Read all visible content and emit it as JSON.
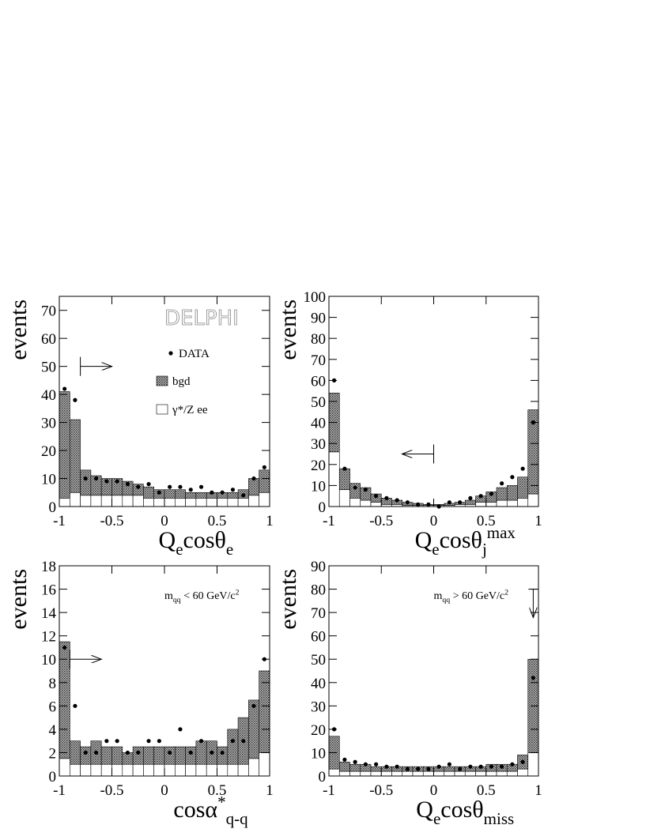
{
  "chart_data": [
    {
      "type": "histogram",
      "ylabel": "events",
      "xlabel": [
        {
          "text": "Q"
        },
        {
          "text": "e",
          "shift": "sub"
        },
        {
          "text": "cosθ"
        },
        {
          "text": "e",
          "shift": "sub"
        }
      ],
      "annotation": [
        {
          "text": "DELPHI",
          "style": "outline"
        }
      ],
      "legend": true,
      "bins": [
        -1,
        -0.9,
        -0.8,
        -0.7,
        -0.6,
        -0.5,
        -0.4,
        -0.3,
        -0.2,
        -0.1,
        0,
        0.1,
        0.2,
        0.3,
        0.4,
        0.5,
        0.6,
        0.7,
        0.8,
        0.9,
        1
      ],
      "series": [
        {
          "name": "γ*/Z ee",
          "color": "#ffffff",
          "values": [
            3,
            5,
            4,
            4,
            4,
            4,
            4,
            4,
            3,
            3,
            3,
            3,
            3,
            3,
            3,
            3,
            3,
            3,
            4,
            5
          ]
        },
        {
          "name": "bgd",
          "color": "#777777",
          "values": [
            38,
            26,
            9,
            7,
            6,
            6,
            5,
            4,
            4,
            3,
            3,
            3,
            2,
            2,
            2,
            2,
            2,
            3,
            6,
            8
          ]
        }
      ],
      "data": {
        "name": "DATA",
        "color": "#000000",
        "values": [
          42,
          38,
          10,
          10,
          9,
          9,
          8,
          7,
          8,
          5,
          7,
          7,
          6,
          7,
          5,
          5,
          6,
          4,
          10,
          14
        ]
      },
      "cut": {
        "x": -0.8,
        "y": 50,
        "direction": "right"
      },
      "xlim": [
        -1,
        1
      ],
      "xticks": [
        -1,
        -0.5,
        0,
        0.5,
        1
      ],
      "ylim": [
        0,
        75
      ],
      "yticks": [
        0,
        10,
        20,
        30,
        40,
        50,
        60,
        70
      ]
    },
    {
      "type": "histogram",
      "ylabel": "events",
      "xlabel": [
        {
          "text": "Q"
        },
        {
          "text": "e",
          "shift": "sub"
        },
        {
          "text": "cosθ"
        },
        {
          "text": "j",
          "shift": "sub"
        },
        {
          "text": "max",
          "shift": "sup"
        }
      ],
      "annotation": [],
      "legend": false,
      "bins": [
        -1,
        -0.9,
        -0.8,
        -0.7,
        -0.6,
        -0.5,
        -0.4,
        -0.3,
        -0.2,
        -0.1,
        0,
        0.1,
        0.2,
        0.3,
        0.4,
        0.5,
        0.6,
        0.7,
        0.8,
        0.9,
        1
      ],
      "series": [
        {
          "name": "γ*/Z ee",
          "color": "#ffffff",
          "values": [
            26,
            8,
            4,
            3,
            2,
            1,
            1,
            0.5,
            0.5,
            0.5,
            0.5,
            0.5,
            1,
            1,
            2,
            2,
            3,
            3,
            4,
            6
          ]
        },
        {
          "name": "bgd",
          "color": "#777777",
          "values": [
            28,
            10,
            7,
            6,
            4,
            3,
            2,
            1.5,
            1,
            0.5,
            0.5,
            1,
            1,
            2,
            3,
            5,
            6,
            7,
            10,
            40
          ]
        }
      ],
      "data": {
        "name": "DATA",
        "color": "#000000",
        "values": [
          60,
          18,
          9,
          8,
          5,
          4,
          3,
          2,
          1,
          1,
          0,
          2,
          2,
          4,
          5,
          6,
          11,
          14,
          18,
          40
        ]
      },
      "cut": {
        "x": 0,
        "y": 25,
        "direction": "left"
      },
      "xlim": [
        -1,
        1
      ],
      "xticks": [
        -1,
        -0.5,
        0,
        0.5,
        1
      ],
      "ylim": [
        0,
        100
      ],
      "yticks": [
        0,
        10,
        20,
        30,
        40,
        50,
        60,
        70,
        80,
        90,
        100
      ]
    },
    {
      "type": "histogram",
      "ylabel": "events",
      "xlabel": [
        {
          "text": "cosα"
        },
        {
          "text": "*",
          "shift": "sup"
        },
        {
          "text": "q-q",
          "shift": "sub"
        }
      ],
      "annotation": [
        {
          "text": "m",
          "style": "plain"
        },
        {
          "text": "qq",
          "style": "sub"
        },
        {
          "text": " < 60 GeV/c",
          "style": "plain"
        },
        {
          "text": "2",
          "style": "sup"
        }
      ],
      "legend": false,
      "bins": [
        -1,
        -0.9,
        -0.8,
        -0.7,
        -0.6,
        -0.5,
        -0.4,
        -0.3,
        -0.2,
        -0.1,
        0,
        0.1,
        0.2,
        0.3,
        0.4,
        0.5,
        0.6,
        0.7,
        0.8,
        0.9,
        1
      ],
      "series": [
        {
          "name": "γ*/Z ee",
          "color": "#ffffff",
          "values": [
            1.5,
            1,
            1,
            1,
            1,
            1,
            1,
            1,
            1,
            1,
            1,
            1,
            1,
            1,
            1,
            1,
            1,
            1,
            1.5,
            2
          ]
        },
        {
          "name": "bgd",
          "color": "#777777",
          "values": [
            10,
            2,
            1.5,
            2,
            1.5,
            1.5,
            1,
            1.5,
            1.5,
            1.5,
            1.5,
            1.5,
            1.5,
            2,
            2,
            1.5,
            3,
            4,
            5,
            7
          ]
        }
      ],
      "data": {
        "name": "DATA",
        "color": "#000000",
        "values": [
          11,
          6,
          2,
          2,
          3,
          3,
          2,
          2,
          3,
          3,
          2,
          4,
          2,
          3,
          2,
          2,
          3,
          3,
          6,
          10
        ]
      },
      "cut": {
        "x": -0.9,
        "y": 10,
        "direction": "right"
      },
      "xlim": [
        -1,
        1
      ],
      "xticks": [
        -1,
        -0.5,
        0,
        0.5,
        1
      ],
      "ylim": [
        0,
        18
      ],
      "yticks": [
        0,
        2,
        4,
        6,
        8,
        10,
        12,
        14,
        16,
        18
      ]
    },
    {
      "type": "histogram",
      "ylabel": "events",
      "xlabel": [
        {
          "text": "Q"
        },
        {
          "text": "e",
          "shift": "sub"
        },
        {
          "text": "cosθ"
        },
        {
          "text": "miss",
          "shift": "sub"
        }
      ],
      "annotation": [
        {
          "text": "m",
          "style": "plain"
        },
        {
          "text": "qq",
          "style": "sub"
        },
        {
          "text": " > 60 GeV/c",
          "style": "plain"
        },
        {
          "text": "2",
          "style": "sup"
        }
      ],
      "legend": false,
      "bins": [
        -1,
        -0.9,
        -0.8,
        -0.7,
        -0.6,
        -0.5,
        -0.4,
        -0.3,
        -0.2,
        -0.1,
        0,
        0.1,
        0.2,
        0.3,
        0.4,
        0.5,
        0.6,
        0.7,
        0.8,
        0.9,
        1
      ],
      "series": [
        {
          "name": "γ*/Z ee",
          "color": "#ffffff",
          "values": [
            3,
            2,
            2,
            2,
            2,
            2,
            2,
            2,
            2,
            2,
            2,
            2,
            2,
            2,
            2,
            2,
            2,
            2,
            3,
            10
          ]
        },
        {
          "name": "bgd",
          "color": "#777777",
          "values": [
            14,
            4,
            3,
            3,
            2,
            2,
            2,
            2,
            2,
            2,
            2,
            2,
            2,
            2,
            2,
            3,
            3,
            3,
            6,
            40
          ]
        }
      ],
      "data": {
        "name": "DATA",
        "color": "#000000",
        "values": [
          20,
          7,
          6,
          5,
          5,
          4,
          4,
          3,
          3,
          3,
          4,
          5,
          3,
          4,
          4,
          4,
          4,
          5,
          6,
          42
        ]
      },
      "cut": {
        "x": 0.95,
        "y": 80,
        "direction": "down"
      },
      "xlim": [
        -1,
        1
      ],
      "xticks": [
        -1,
        -0.5,
        0,
        0.5,
        1
      ],
      "ylim": [
        0,
        90
      ],
      "yticks": [
        0,
        10,
        20,
        30,
        40,
        50,
        60,
        70,
        80,
        90
      ]
    }
  ]
}
